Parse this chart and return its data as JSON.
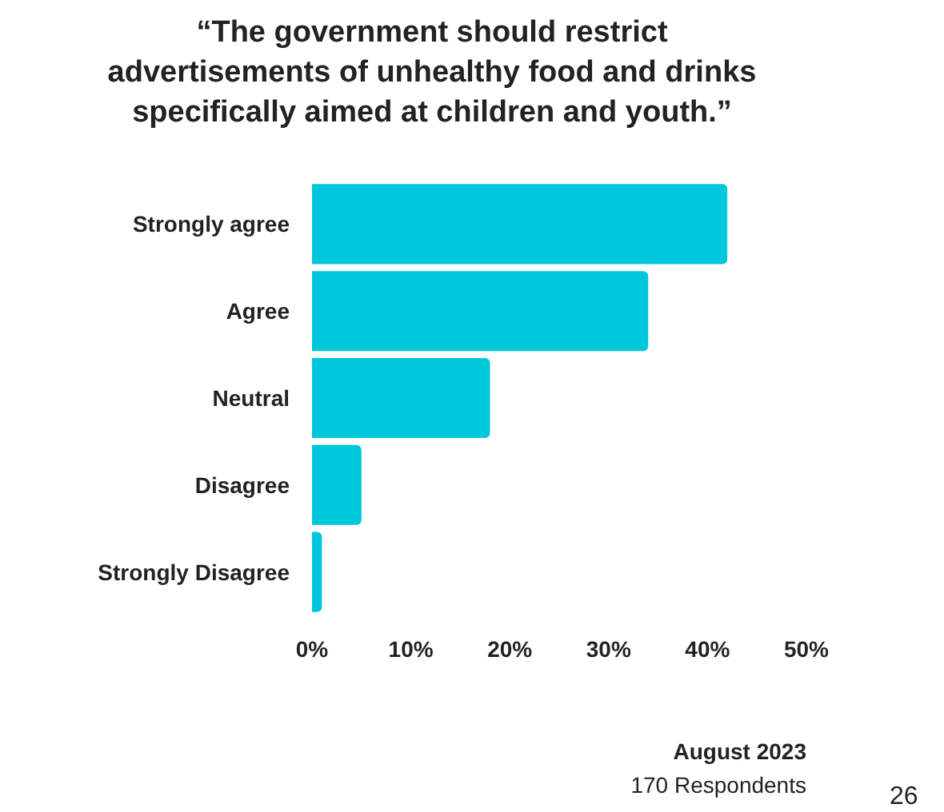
{
  "chart_data": {
    "type": "bar",
    "orientation": "horizontal",
    "title": "“The government should restrict advertisements of unhealthy food and drinks specifically aimed at children and youth.”",
    "categories": [
      "Strongly agree",
      "Agree",
      "Neutral",
      "Disagree",
      "Strongly Disagree"
    ],
    "values": [
      42,
      34,
      18,
      5,
      1
    ],
    "color": "#00c8dc",
    "xlim": [
      0,
      50
    ],
    "xticks": [
      {
        "value": 0,
        "label": "0%"
      },
      {
        "value": 10,
        "label": "10%"
      },
      {
        "value": 20,
        "label": "20%"
      },
      {
        "value": 30,
        "label": "30%"
      },
      {
        "value": 40,
        "label": "40%"
      },
      {
        "value": 50,
        "label": "50%"
      }
    ],
    "annotations": [
      "August 2023",
      "170 Respondents",
      "26"
    ]
  }
}
